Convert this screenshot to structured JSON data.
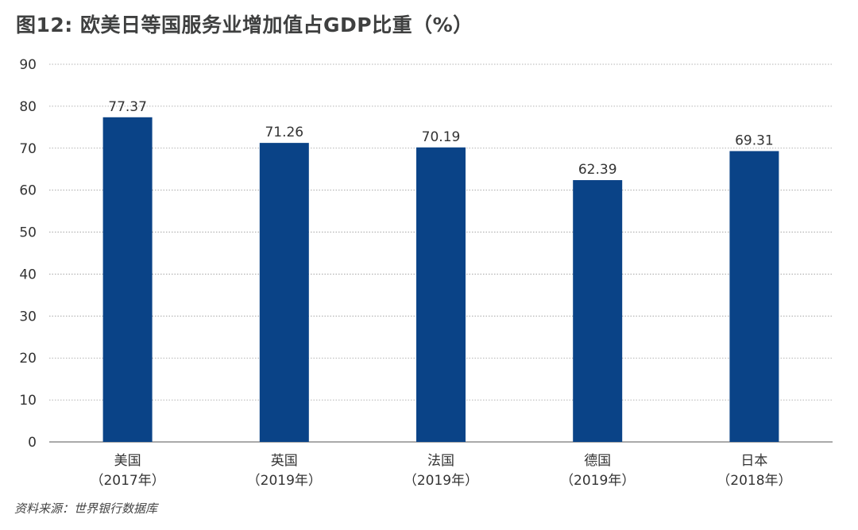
{
  "title": "图12: 欧美日等国服务业增加值占GDP比重（%）",
  "source": "资料来源：世界银行数据库",
  "colors": {
    "bar": "#0a4387",
    "grid": "#9a9a9a",
    "text": "#333333"
  },
  "chart_data": {
    "type": "bar",
    "title": "图12: 欧美日等国服务业增加值占GDP比重（%）",
    "categories": [
      [
        "美国",
        "（2017年）"
      ],
      [
        "英国",
        "（2019年）"
      ],
      [
        "法国",
        "（2019年）"
      ],
      [
        "德国",
        "（2019年）"
      ],
      [
        "日本",
        "（2018年）"
      ]
    ],
    "values": [
      77.37,
      71.26,
      70.19,
      62.39,
      69.31
    ],
    "value_labels": [
      "77.37",
      "71.26",
      "70.19",
      "62.39",
      "69.31"
    ],
    "ylim": [
      0,
      90
    ],
    "yticks": [
      0,
      10,
      20,
      30,
      40,
      50,
      60,
      70,
      80,
      90
    ],
    "grid": true,
    "legend": "none"
  }
}
